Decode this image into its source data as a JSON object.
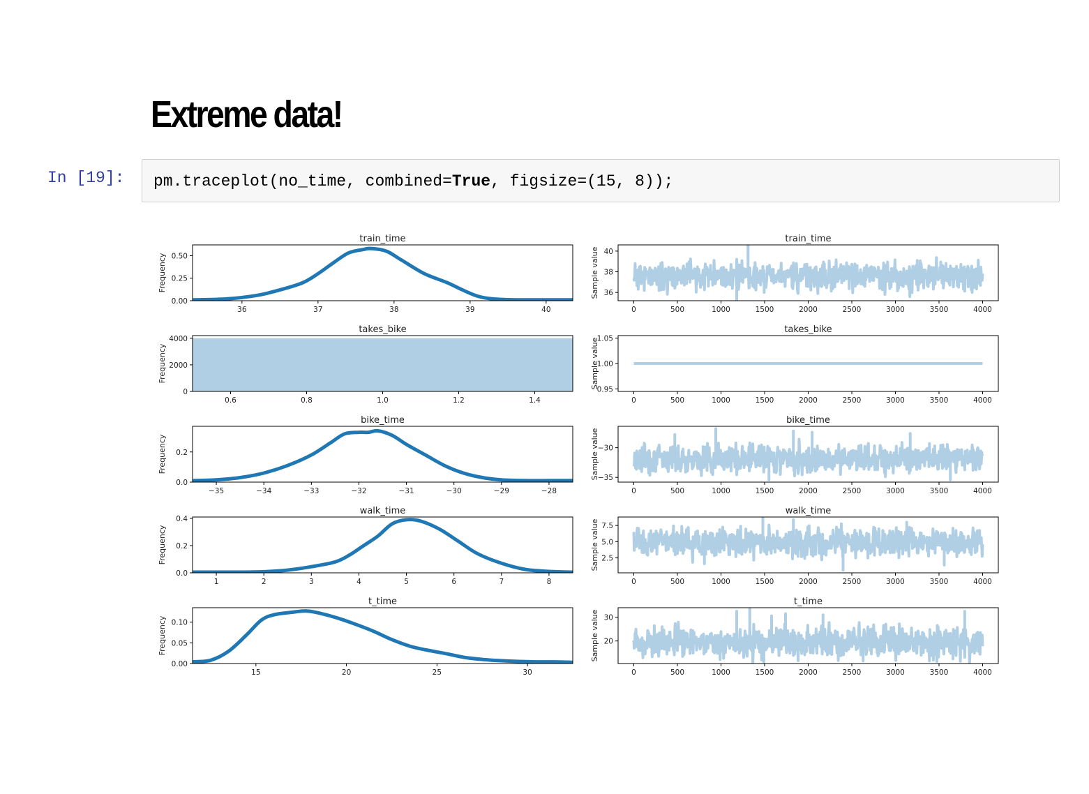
{
  "heading": "Extreme data!",
  "cell": {
    "prompt": "In [19]:",
    "code_prefix": "pm.traceplot(no_time, combined=",
    "code_keyword": "True",
    "code_suffix": ", figsize=(15, 8));"
  },
  "colors": {
    "kde_line": "#1f77b4",
    "trace": "#b0cfe5",
    "hist_fill": "#b0cfe5",
    "prompt": "#303f9f"
  },
  "chart_data": [
    {
      "type": "line",
      "title": "train_time",
      "ylabel": "Frequency",
      "xlim": [
        35.35,
        40.35
      ],
      "ylim": [
        0,
        0.62
      ],
      "xticks": [
        36,
        37,
        38,
        39,
        40
      ],
      "yticks": [
        0,
        0.25,
        0.5
      ],
      "ytick_labels": [
        "0.00",
        "0.25",
        "0.50"
      ],
      "x": [
        35.35,
        35.8,
        36.2,
        36.5,
        36.8,
        37.0,
        37.2,
        37.4,
        37.6,
        37.7,
        37.9,
        38.1,
        38.4,
        38.7,
        38.9,
        39.1,
        39.3,
        39.6,
        40.0,
        40.35
      ],
      "y": [
        0.01,
        0.02,
        0.06,
        0.12,
        0.2,
        0.3,
        0.42,
        0.53,
        0.57,
        0.58,
        0.55,
        0.45,
        0.3,
        0.2,
        0.12,
        0.05,
        0.02,
        0.01,
        0.01,
        0.01
      ]
    },
    {
      "type": "line",
      "title": "train_time",
      "ylabel": "Sample value",
      "xlim": [
        -180,
        4180
      ],
      "ylim": [
        35.2,
        40.6
      ],
      "xticks": [
        0,
        500,
        1000,
        1500,
        2000,
        2500,
        3000,
        3500,
        4000
      ],
      "yticks": [
        36,
        38,
        40
      ],
      "ytick_labels": [
        "36",
        "38",
        "40"
      ],
      "trace": {
        "n": 4000,
        "center": 37.6,
        "spread": 1.0,
        "outliers": [
          [
            1180,
            35.3
          ],
          [
            1310,
            40.5
          ],
          [
            1405,
            38.2
          ],
          [
            1495,
            36.0
          ],
          [
            3165,
            35.6
          ],
          [
            3880,
            36.0
          ]
        ],
        "seed": 11
      }
    },
    {
      "type": "bar",
      "title": "takes_bike",
      "ylabel": "Frequency",
      "xlim": [
        0.5,
        1.5
      ],
      "ylim": [
        0,
        4200
      ],
      "xticks": [
        0.6,
        0.8,
        1.0,
        1.2,
        1.4
      ],
      "xtick_labels": [
        "0.6",
        "0.8",
        "1.0",
        "1.2",
        "1.4"
      ],
      "yticks": [
        0,
        2000,
        4000
      ],
      "ytick_labels": [
        "0",
        "2000",
        "4000"
      ],
      "bars": [
        {
          "x0": 0.5,
          "x1": 1.5,
          "value": 4000
        }
      ]
    },
    {
      "type": "line",
      "title": "takes_bike",
      "ylabel": "Sample value",
      "xlim": [
        -180,
        4180
      ],
      "ylim": [
        0.945,
        1.055
      ],
      "xticks": [
        0,
        500,
        1000,
        1500,
        2000,
        2500,
        3000,
        3500,
        4000
      ],
      "yticks": [
        0.95,
        1.0,
        1.05
      ],
      "ytick_labels": [
        "0.95",
        "1.00",
        "1.05"
      ],
      "trace": {
        "n": 4000,
        "center": 1.0,
        "spread": 0,
        "outliers": [],
        "seed": 3
      }
    },
    {
      "type": "line",
      "title": "bike_time",
      "ylabel": "Frequency",
      "xlim": [
        -35.5,
        -27.5
      ],
      "ylim": [
        0,
        0.37
      ],
      "xticks": [
        -35,
        -34,
        -33,
        -32,
        -31,
        -30,
        -29,
        -28
      ],
      "xtick_labels": [
        "−35",
        "−34",
        "−33",
        "−32",
        "−31",
        "−30",
        "−29",
        "−28"
      ],
      "yticks": [
        0,
        0.2
      ],
      "ytick_labels": [
        "0.0",
        "0.2"
      ],
      "x": [
        -35.5,
        -35.0,
        -34.5,
        -34.0,
        -33.5,
        -33.0,
        -32.6,
        -32.3,
        -32.0,
        -31.8,
        -31.6,
        -31.3,
        -31.0,
        -30.6,
        -30.2,
        -29.8,
        -29.4,
        -29.0,
        -28.5,
        -28.0,
        -27.5
      ],
      "y": [
        0.01,
        0.015,
        0.03,
        0.06,
        0.11,
        0.18,
        0.26,
        0.32,
        0.33,
        0.33,
        0.34,
        0.31,
        0.25,
        0.18,
        0.11,
        0.06,
        0.03,
        0.015,
        0.01,
        0.01,
        0.01
      ]
    },
    {
      "type": "line",
      "title": "bike_time",
      "ylabel": "Sample value",
      "xlim": [
        -180,
        4180
      ],
      "ylim": [
        -35.8,
        -26.4
      ],
      "xticks": [
        0,
        500,
        1000,
        1500,
        2000,
        2500,
        3000,
        3500,
        4000
      ],
      "yticks": [
        -35,
        -30
      ],
      "ytick_labels": [
        "−35",
        "−30"
      ],
      "trace": {
        "n": 4000,
        "center": -31.8,
        "spread": 1.8,
        "outliers": [
          [
            470,
            -27.8
          ],
          [
            940,
            -26.8
          ],
          [
            1550,
            -35.4
          ],
          [
            1830,
            -27.2
          ],
          [
            2045,
            -27.4
          ],
          [
            3170,
            -27.6
          ],
          [
            3630,
            -35.4
          ]
        ],
        "seed": 7
      }
    },
    {
      "type": "line",
      "title": "walk_time",
      "ylabel": "Frequency",
      "xlim": [
        0.5,
        8.5
      ],
      "ylim": [
        0,
        0.41
      ],
      "xticks": [
        1,
        2,
        3,
        4,
        5,
        6,
        7,
        8
      ],
      "yticks": [
        0,
        0.2,
        0.4
      ],
      "ytick_labels": [
        "0.0",
        "0.2",
        "0.4"
      ],
      "x": [
        0.5,
        1.0,
        1.5,
        2.0,
        2.5,
        3.0,
        3.5,
        3.8,
        4.1,
        4.4,
        4.7,
        5.0,
        5.3,
        5.7,
        6.1,
        6.5,
        7.0,
        7.5,
        8.0,
        8.5
      ],
      "y": [
        0.005,
        0.005,
        0.005,
        0.008,
        0.02,
        0.045,
        0.08,
        0.13,
        0.2,
        0.27,
        0.36,
        0.39,
        0.38,
        0.32,
        0.23,
        0.14,
        0.07,
        0.025,
        0.01,
        0.005
      ]
    },
    {
      "type": "line",
      "title": "walk_time",
      "ylabel": "Sample value",
      "xlim": [
        -180,
        4180
      ],
      "ylim": [
        0.2,
        8.8
      ],
      "xticks": [
        0,
        500,
        1000,
        1500,
        2000,
        2500,
        3000,
        3500,
        4000
      ],
      "yticks": [
        2.5,
        5.0,
        7.5
      ],
      "ytick_labels": [
        "2.5",
        "5.0",
        "7.5"
      ],
      "trace": {
        "n": 4000,
        "center": 4.9,
        "spread": 1.7,
        "outliers": [
          [
            810,
            1.6
          ],
          [
            1480,
            8.7
          ],
          [
            1830,
            8.4
          ],
          [
            2400,
            0.6
          ],
          [
            3130,
            8.0
          ],
          [
            3560,
            1.4
          ]
        ],
        "seed": 5
      }
    },
    {
      "type": "line",
      "title": "t_time",
      "ylabel": "Frequency",
      "xlim": [
        11.5,
        32.5
      ],
      "ylim": [
        0,
        0.135
      ],
      "xticks": [
        15,
        20,
        25,
        30
      ],
      "yticks": [
        0,
        0.05,
        0.1
      ],
      "ytick_labels": [
        "0.00",
        "0.05",
        "0.10"
      ],
      "x": [
        11.5,
        12.5,
        13.5,
        14.5,
        15.3,
        16.0,
        17.0,
        17.8,
        18.5,
        19.5,
        20.5,
        21.5,
        22.5,
        23.5,
        24.5,
        25.5,
        26.5,
        27.5,
        28.5,
        29.5,
        30.5,
        31.5,
        32.5
      ],
      "y": [
        0.004,
        0.008,
        0.03,
        0.07,
        0.105,
        0.118,
        0.124,
        0.127,
        0.122,
        0.11,
        0.095,
        0.078,
        0.058,
        0.042,
        0.032,
        0.024,
        0.015,
        0.01,
        0.007,
        0.005,
        0.004,
        0.004,
        0.003
      ]
    },
    {
      "type": "line",
      "title": "t_time",
      "ylabel": "Sample value",
      "xlim": [
        -180,
        4180
      ],
      "ylim": [
        10.5,
        34
      ],
      "xticks": [
        0,
        500,
        1000,
        1500,
        2000,
        2500,
        3000,
        3500,
        4000
      ],
      "yticks": [
        20,
        30
      ],
      "ytick_labels": [
        "20",
        "30"
      ],
      "trace": {
        "n": 4000,
        "center": 19.5,
        "spread": 5.0,
        "outliers": [
          [
            1180,
            32.5
          ],
          [
            1330,
            33.8
          ],
          [
            1580,
            30.6
          ],
          [
            1740,
            31.5
          ],
          [
            2170,
            31.0
          ],
          [
            3795,
            32.5
          ],
          [
            1465,
            12.0
          ],
          [
            2630,
            11.6
          ]
        ],
        "seed": 9
      }
    }
  ]
}
